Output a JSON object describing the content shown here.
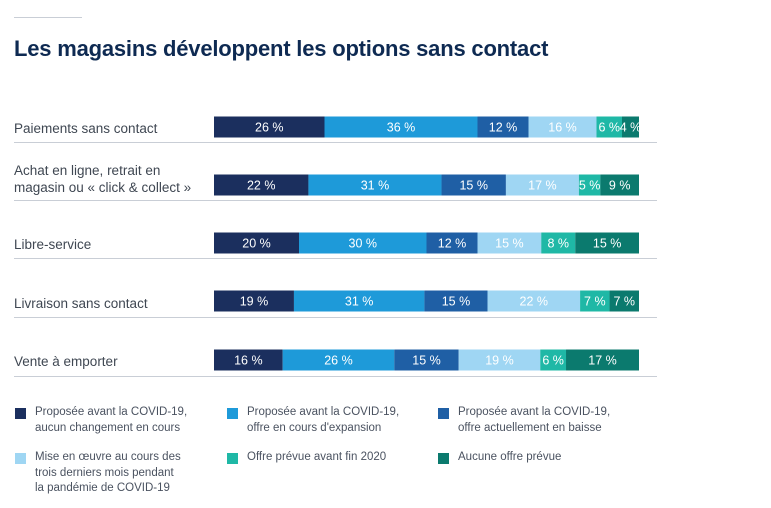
{
  "title": "Les magasins développent les options sans contact",
  "chart_data": {
    "type": "bar",
    "orientation": "horizontal",
    "stacked": true,
    "title": "Les magasins développent les options sans contact",
    "categories": [
      "Paiements sans contact",
      "Achat en ligne, retrait en magasin ou « click & collect »",
      "Libre-service",
      "Livraison sans contact",
      "Vente à emporter"
    ],
    "value_suffix": " %",
    "series": [
      {
        "name": "Proposée avant la COVID-19, aucun changement en cours",
        "color": "#1b2f5e",
        "label_color": "#ffffff",
        "values": [
          26,
          22,
          20,
          19,
          16
        ]
      },
      {
        "name": "Proposée avant la COVID-19, offre en cours d'expansion",
        "color": "#1e9ad9",
        "label_color": "#ffffff",
        "values": [
          36,
          31,
          30,
          31,
          26
        ]
      },
      {
        "name": "Proposée avant la COVID-19, offre actuellement en baisse",
        "color": "#1f5fa5",
        "label_color": "#ffffff",
        "values": [
          12,
          15,
          12,
          15,
          15
        ]
      },
      {
        "name": "Mise en œuvre au cours des trois derniers mois pendant la pandémie de COVID-19",
        "color": "#9fd6f3",
        "label_color": "#ffffff",
        "values": [
          16,
          17,
          15,
          22,
          19
        ]
      },
      {
        "name": "Offre prévue avant fin 2020",
        "color": "#1fb8a6",
        "label_color": "#ffffff",
        "values": [
          6,
          5,
          8,
          7,
          6
        ]
      },
      {
        "name": "Aucune offre prévue",
        "color": "#0b7a6e",
        "label_color": "#ffffff",
        "values": [
          4,
          9,
          15,
          7,
          17
        ]
      }
    ],
    "legend_position": "bottom",
    "grid": false
  },
  "legend": [
    {
      "label": "Proposée avant la COVID-19,\naucun changement en cours",
      "color": "#1b2f5e"
    },
    {
      "label": "Proposée avant la COVID-19,\noffre en cours d'expansion",
      "color": "#1e9ad9"
    },
    {
      "label": "Proposée avant la COVID-19,\noffre actuellement en baisse",
      "color": "#1f5fa5"
    },
    {
      "label": "Mise en œuvre au cours des\ntrois derniers mois pendant\nla pandémie de COVID-19",
      "color": "#9fd6f3"
    },
    {
      "label": "Offre prévue avant fin 2020",
      "color": "#1fb8a6"
    },
    {
      "label": "Aucune offre prévue",
      "color": "#0b7a6e"
    }
  ]
}
